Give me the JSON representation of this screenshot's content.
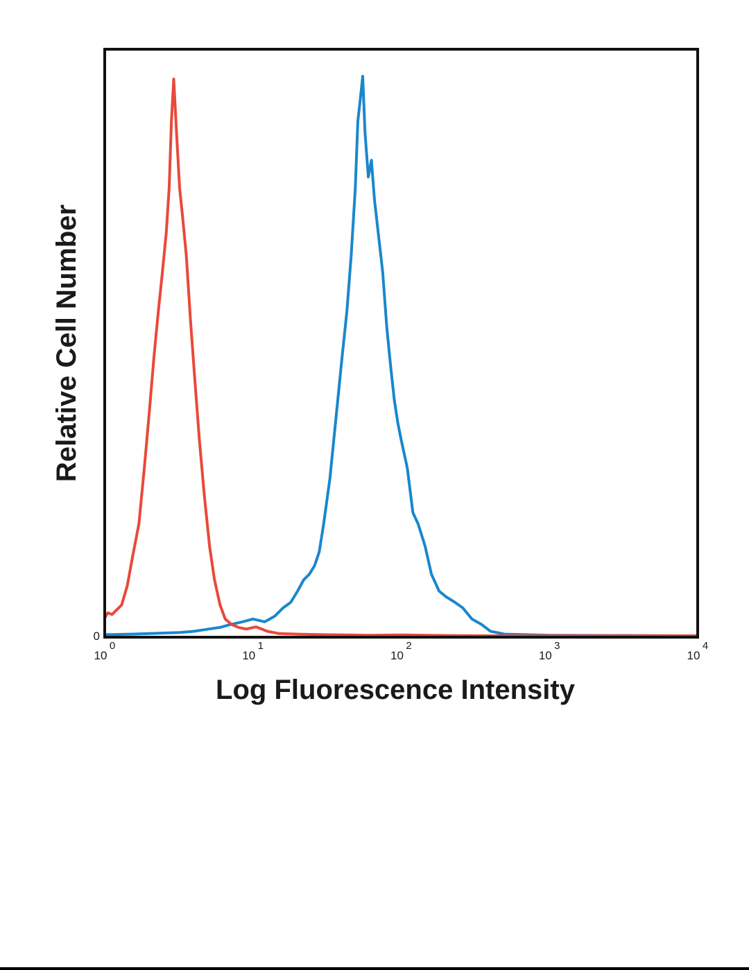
{
  "chart_data": {
    "type": "line",
    "xlabel": "Log Fluorescence Intensity",
    "ylabel": "Relative Cell Number",
    "x_scale": "log",
    "xlim": [
      1,
      10000
    ],
    "ylim": [
      0,
      100
    ],
    "x_ticks": [
      {
        "base": "10",
        "exp": "0",
        "value": 1
      },
      {
        "base": "10",
        "exp": "1",
        "value": 10
      },
      {
        "base": "10",
        "exp": "2",
        "value": 100
      },
      {
        "base": "10",
        "exp": "3",
        "value": 1000
      },
      {
        "base": "10",
        "exp": "4",
        "value": 10000
      }
    ],
    "y_ticks": [
      {
        "label": "0",
        "value": 0
      }
    ],
    "grid": false,
    "colors": {
      "red": "#e8493a",
      "blue": "#1a87cc",
      "frame": "#111111"
    },
    "series": [
      {
        "color": "#e8493a",
        "x": [
          1.0,
          1.05,
          1.12,
          1.2,
          1.3,
          1.42,
          1.55,
          1.7,
          1.85,
          2.0,
          2.15,
          2.3,
          2.45,
          2.6,
          2.72,
          2.82,
          2.92,
          3.05,
          3.2,
          3.35,
          3.55,
          3.8,
          4.05,
          4.35,
          4.7,
          5.1,
          5.5,
          6.0,
          6.5,
          7.2,
          8.0,
          9.0,
          10.5,
          12.5,
          15.0,
          20.0,
          30.0,
          60.0,
          100.0,
          200.0,
          400.0,
          10000.0
        ],
        "y": [
          3.2,
          4.1,
          3.8,
          4.6,
          5.5,
          9.0,
          14.5,
          20.0,
          30.0,
          40.0,
          50.0,
          58.0,
          65.0,
          72.0,
          80.0,
          92.0,
          99.5,
          90.0,
          80.0,
          75.0,
          68.0,
          56.0,
          46.0,
          35.0,
          25.0,
          16.0,
          10.0,
          5.5,
          3.0,
          2.0,
          1.5,
          1.2,
          1.6,
          0.8,
          0.4,
          0.3,
          0.2,
          0.1,
          0.15,
          0.05,
          0.0,
          0.0
        ]
      },
      {
        "color": "#1a87cc",
        "x": [
          1.0,
          1.5,
          2.0,
          2.5,
          3.2,
          4.0,
          5.0,
          6.0,
          7.0,
          8.5,
          10.0,
          12.0,
          14.0,
          16.0,
          18.0,
          20.0,
          22.0,
          24.0,
          26.0,
          28.0,
          30.0,
          33.0,
          36.0,
          40.0,
          43.0,
          46.0,
          49.0,
          51.0,
          53.0,
          55.0,
          57.0,
          60.0,
          63.0,
          66.0,
          70.0,
          75.0,
          80.0,
          85.0,
          90.0,
          95.0,
          100.0,
          110.0,
          120.0,
          130.0,
          145.0,
          160.0,
          180.0,
          200.0,
          230.0,
          260.0,
          300.0,
          350.0,
          400.0,
          500.0,
          1000.0,
          10000.0
        ],
        "y": [
          0.2,
          0.3,
          0.4,
          0.5,
          0.6,
          0.8,
          1.2,
          1.5,
          2.0,
          2.5,
          3.0,
          2.5,
          3.5,
          5.0,
          6.0,
          8.0,
          10.0,
          11.0,
          12.5,
          15.0,
          20.0,
          28.0,
          38.0,
          50.0,
          58.0,
          68.0,
          80.0,
          92.0,
          96.0,
          100.0,
          90.0,
          82.0,
          85.0,
          78.0,
          72.0,
          65.0,
          55.0,
          48.0,
          42.0,
          38.0,
          35.0,
          30.0,
          22.0,
          20.0,
          16.0,
          11.0,
          8.0,
          7.0,
          6.0,
          5.0,
          3.0,
          2.0,
          0.8,
          0.3,
          0.1,
          0.0
        ]
      }
    ]
  }
}
